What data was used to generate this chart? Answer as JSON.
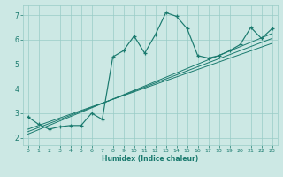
{
  "xlabel": "Humidex (Indice chaleur)",
  "bg_color": "#cce8e4",
  "grid_color": "#99ccc6",
  "line_color": "#1a7a6e",
  "xlim": [
    -0.5,
    23.5
  ],
  "ylim": [
    1.7,
    7.4
  ],
  "xticks": [
    0,
    1,
    2,
    3,
    4,
    5,
    6,
    7,
    8,
    9,
    10,
    11,
    12,
    13,
    14,
    15,
    16,
    17,
    18,
    19,
    20,
    21,
    22,
    23
  ],
  "yticks": [
    2,
    3,
    4,
    5,
    6,
    7
  ],
  "main_x": [
    0,
    1,
    2,
    3,
    4,
    5,
    6,
    7,
    8,
    9,
    10,
    11,
    12,
    13,
    14,
    15,
    16,
    17,
    18,
    19,
    20,
    21,
    22,
    23
  ],
  "main_y": [
    2.85,
    2.55,
    2.35,
    2.45,
    2.5,
    2.5,
    3.0,
    2.75,
    5.3,
    5.55,
    6.15,
    5.45,
    6.2,
    7.1,
    6.95,
    6.45,
    5.35,
    5.25,
    5.35,
    5.55,
    5.8,
    6.5,
    6.05,
    6.45
  ],
  "trend1_x": [
    0,
    23
  ],
  "trend1_y": [
    2.35,
    5.85
  ],
  "trend2_x": [
    0,
    23
  ],
  "trend2_y": [
    2.25,
    6.05
  ],
  "trend3_x": [
    0,
    23
  ],
  "trend3_y": [
    2.15,
    6.25
  ]
}
